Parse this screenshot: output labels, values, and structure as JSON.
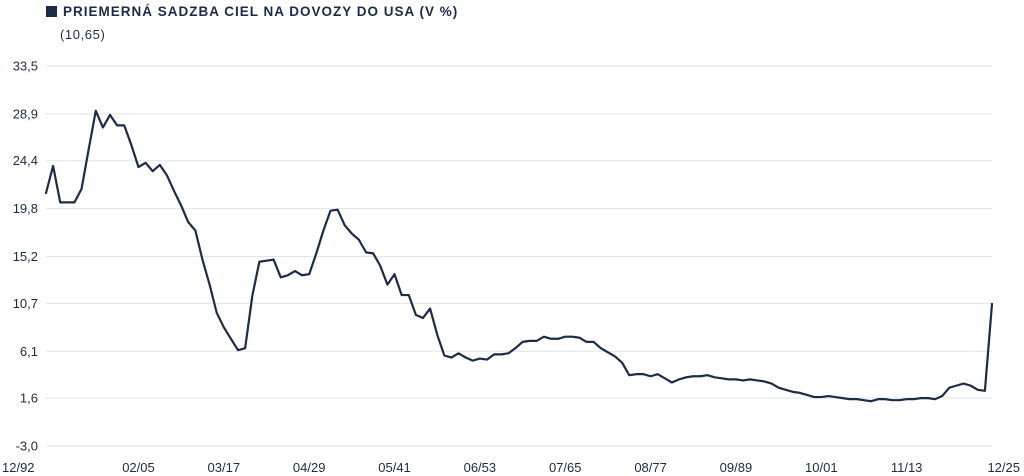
{
  "chart_data": {
    "type": "line",
    "title": "PRIEMERNÁ SADZBA CIEL NA DOVOZY DO USA (V %)",
    "subtitle": "(10,65)",
    "xlabel": "",
    "ylabel": "",
    "ylim": [
      -3.0,
      33.5
    ],
    "y_ticks": [
      "33,5",
      "28,9",
      "24,4",
      "19,8",
      "15,2",
      "10,7",
      "6,1",
      "1,6",
      "-3,0"
    ],
    "y_tick_values": [
      33.5,
      28.9,
      24.4,
      19.8,
      15.2,
      10.7,
      6.1,
      1.6,
      -3.0
    ],
    "x_ticks": [
      "12/92",
      "02/05",
      "03/17",
      "04/29",
      "05/41",
      "06/53",
      "07/65",
      "08/77",
      "09/89",
      "10/01",
      "11/13",
      "12/25"
    ],
    "x_tick_years": [
      1892,
      1905,
      1917,
      1929,
      1941,
      1953,
      1965,
      1977,
      1989,
      2001,
      2013,
      2025
    ],
    "xlim": [
      1892,
      2025
    ],
    "grid": true,
    "line_color": "#1c2b47",
    "series": [
      {
        "name": "",
        "x": [
          1892,
          1893,
          1894,
          1896,
          1897,
          1898,
          1899,
          1900,
          1901,
          1902,
          1903,
          1904,
          1905,
          1906,
          1907,
          1908,
          1909,
          1910,
          1911,
          1912,
          1913,
          1914,
          1915,
          1916,
          1917,
          1918,
          1919,
          1920,
          1921,
          1922,
          1923,
          1924,
          1925,
          1926,
          1927,
          1928,
          1929,
          1930,
          1931,
          1932,
          1933,
          1934,
          1935,
          1936,
          1937,
          1938,
          1939,
          1940,
          1941,
          1942,
          1943,
          1944,
          1945,
          1946,
          1947,
          1948,
          1949,
          1950,
          1951,
          1952,
          1953,
          1954,
          1955,
          1956,
          1957,
          1958,
          1959,
          1960,
          1961,
          1962,
          1963,
          1964,
          1965,
          1966,
          1967,
          1968,
          1969,
          1970,
          1971,
          1972,
          1973,
          1974,
          1975,
          1976,
          1977,
          1978,
          1979,
          1980,
          1981,
          1982,
          1983,
          1984,
          1985,
          1986,
          1987,
          1988,
          1989,
          1990,
          1991,
          1992,
          1993,
          1994,
          1995,
          1996,
          1997,
          1998,
          1999,
          2000,
          2001,
          2002,
          2003,
          2004,
          2005,
          2006,
          2007,
          2008,
          2009,
          2010,
          2011,
          2012,
          2013,
          2014,
          2015,
          2016,
          2017,
          2018,
          2019,
          2020,
          2021,
          2022,
          2023,
          2024,
          2025
        ],
        "values": [
          21.3,
          23.9,
          20.4,
          20.4,
          21.7,
          25.5,
          29.2,
          27.6,
          28.8,
          27.8,
          27.8,
          25.9,
          23.8,
          24.2,
          23.4,
          24.0,
          23.0,
          21.5,
          20.1,
          18.5,
          17.7,
          14.9,
          12.5,
          9.8,
          8.4,
          7.3,
          6.2,
          6.4,
          11.4,
          14.7,
          14.8,
          14.9,
          13.2,
          13.4,
          13.8,
          13.4,
          13.5,
          15.5,
          17.7,
          19.6,
          19.7,
          18.2,
          17.4,
          16.8,
          15.6,
          15.5,
          14.3,
          12.5,
          13.5,
          11.5,
          11.5,
          9.6,
          9.3,
          10.2,
          7.7,
          5.7,
          5.5,
          5.9,
          5.5,
          5.2,
          5.4,
          5.3,
          5.8,
          5.8,
          5.9,
          6.4,
          7.0,
          7.1,
          7.1,
          7.5,
          7.3,
          7.3,
          7.5,
          7.5,
          7.4,
          7.0,
          7.0,
          6.4,
          6.0,
          5.6,
          5.0,
          3.8,
          3.9,
          3.9,
          3.7,
          3.9,
          3.5,
          3.1,
          3.4,
          3.6,
          3.7,
          3.7,
          3.8,
          3.6,
          3.5,
          3.4,
          3.4,
          3.3,
          3.4,
          3.3,
          3.2,
          3.0,
          2.6,
          2.4,
          2.2,
          2.1,
          1.9,
          1.7,
          1.7,
          1.8,
          1.7,
          1.6,
          1.5,
          1.5,
          1.4,
          1.3,
          1.5,
          1.5,
          1.4,
          1.4,
          1.5,
          1.5,
          1.6,
          1.6,
          1.5,
          1.8,
          2.6,
          2.8,
          3.0,
          2.8,
          2.4,
          2.3,
          10.65
        ]
      }
    ]
  }
}
